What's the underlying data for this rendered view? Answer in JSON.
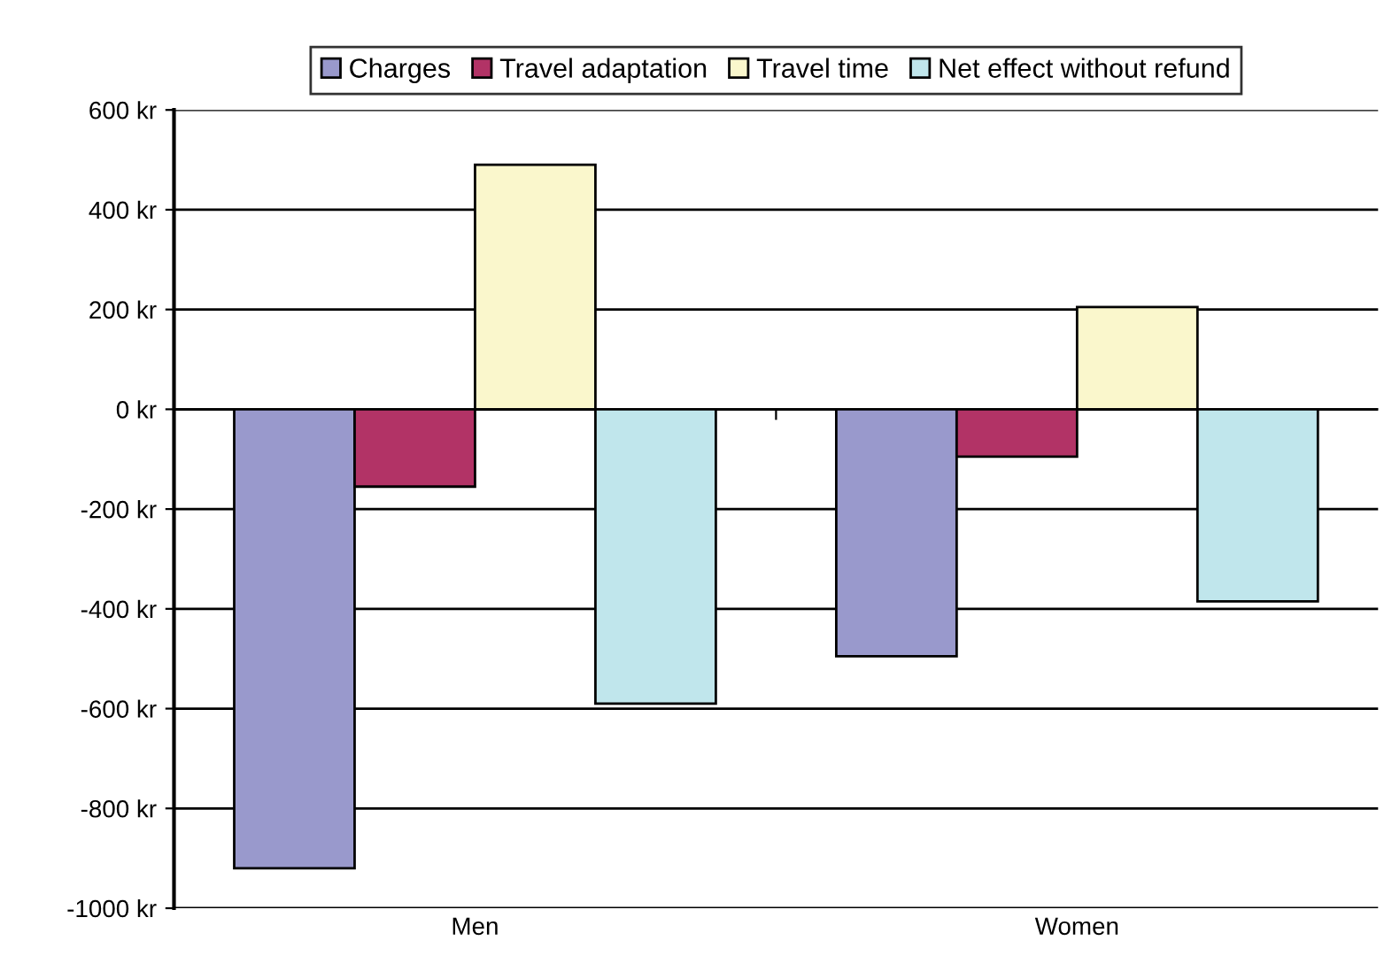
{
  "chart_data": {
    "type": "bar",
    "categories": [
      "Men",
      "Women"
    ],
    "series": [
      {
        "name": "Charges",
        "color": "#9999cc",
        "values": [
          -920,
          -495
        ]
      },
      {
        "name": "Travel adaptation",
        "color": "#b23366",
        "values": [
          -155,
          -95
        ]
      },
      {
        "name": "Travel time",
        "color": "#faf7cc",
        "values": [
          490,
          205
        ]
      },
      {
        "name": "Net effect without refund",
        "color": "#c0e6ec",
        "values": [
          -590,
          -385
        ]
      }
    ],
    "ylim": [
      -1000,
      600
    ],
    "yticks": [
      {
        "value": -1000,
        "label": "-1000 kr"
      },
      {
        "value": -800,
        "label": "-800 kr"
      },
      {
        "value": -600,
        "label": "-600 kr"
      },
      {
        "value": -400,
        "label": "-400 kr"
      },
      {
        "value": -200,
        "label": "-200 kr"
      },
      {
        "value": 0,
        "label": "0 kr"
      },
      {
        "value": 200,
        "label": "200 kr"
      },
      {
        "value": 400,
        "label": "400 kr"
      },
      {
        "value": 600,
        "label": "600 kr"
      }
    ],
    "grid": "y",
    "legend": "top"
  }
}
